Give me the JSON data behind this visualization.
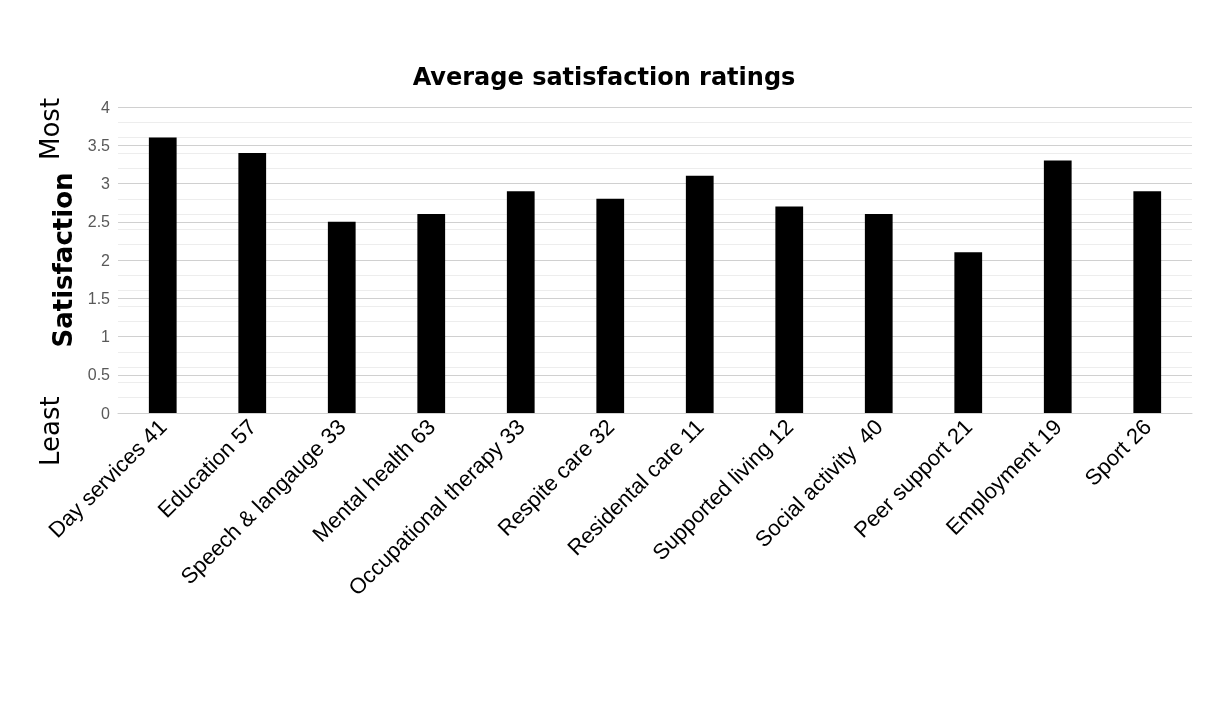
{
  "chart_data": {
    "type": "bar",
    "title": "Average satisfaction ratings",
    "ylabel": "Satisfaction",
    "annotations": [
      "Least",
      "Most"
    ],
    "categories": [
      "Day services 41",
      "Education 57",
      "Speech & langauge 33",
      "Mental health 63",
      "Occupational therapy 33",
      "Respite care 32",
      "Residental care 11",
      "Supported living 12",
      "Social activity  40",
      "Peer support 21",
      "Employment 19",
      "Sport 26"
    ],
    "values": [
      3.6,
      3.4,
      2.5,
      2.6,
      2.9,
      2.8,
      3.1,
      2.7,
      2.6,
      2.1,
      3.3,
      2.9
    ],
    "color": "#000000",
    "ylim": [
      0,
      4
    ],
    "yticks": [
      0,
      0.5,
      1,
      1.5,
      2,
      2.5,
      3,
      3.5,
      4
    ],
    "grid": true
  }
}
